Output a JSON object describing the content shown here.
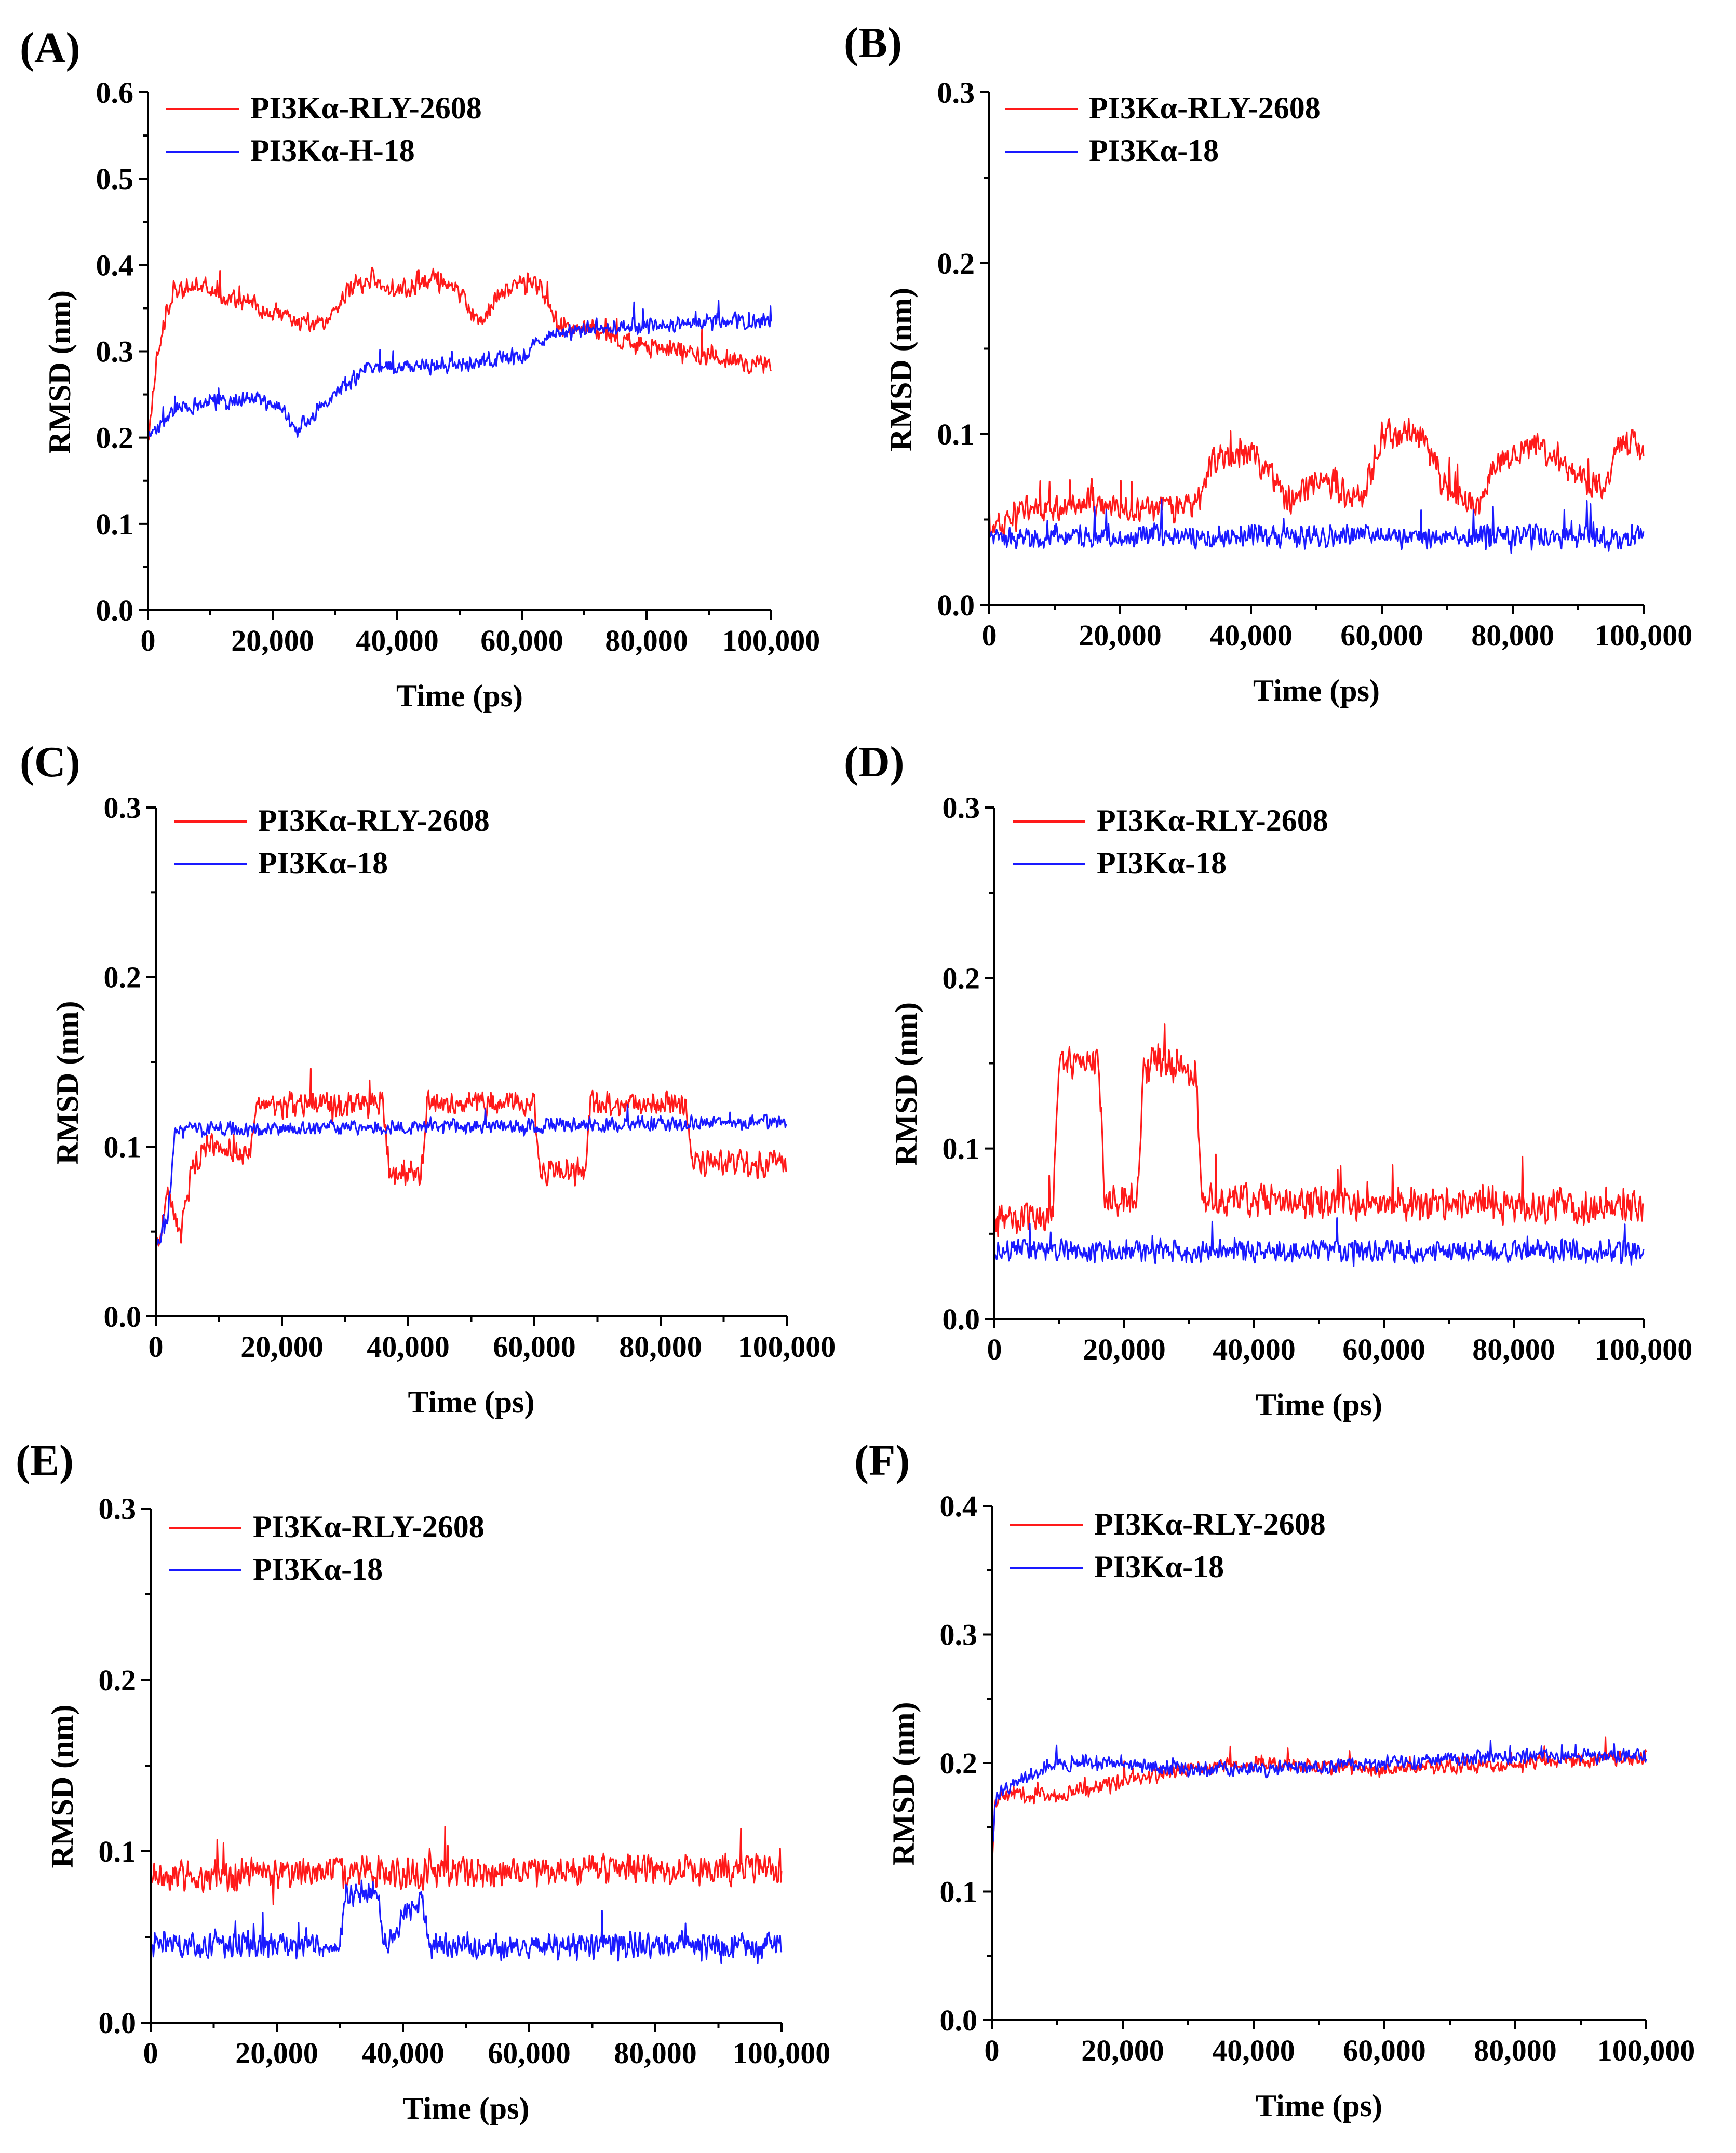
{
  "colors": {
    "red": "#ff1a1a",
    "blue": "#1a1aff"
  },
  "chart_data": [
    {
      "panel": "(A)",
      "type": "line",
      "xlabel": "Time (ps)",
      "ylabel": "RMSD (nm)",
      "xlim": [
        0,
        100000
      ],
      "ylim": [
        0,
        0.6
      ],
      "xticks": [
        0,
        20000,
        40000,
        60000,
        80000,
        100000
      ],
      "xtick_labels": [
        "0",
        "20,000",
        "40,000",
        "60,000",
        "80,000",
        "100,000"
      ],
      "yticks": [
        0,
        0.1,
        0.2,
        0.3,
        0.4,
        0.5,
        0.6
      ],
      "ytick_labels": [
        "0.0",
        "0.1",
        "0.2",
        "0.3",
        "0.4",
        "0.5",
        "0.6"
      ],
      "legend_position": "top-left",
      "series": [
        {
          "name": "PI3Kα-RLY-2608",
          "color": "red",
          "noise": 0.014,
          "x": [
            0,
            1500,
            4000,
            8000,
            15000,
            22000,
            28000,
            32000,
            36000,
            40000,
            46000,
            50000,
            53000,
            57000,
            62000,
            66000,
            72000,
            80000,
            90000,
            100000
          ],
          "y": [
            0.2,
            0.3,
            0.37,
            0.375,
            0.36,
            0.34,
            0.33,
            0.37,
            0.385,
            0.37,
            0.385,
            0.365,
            0.335,
            0.37,
            0.385,
            0.33,
            0.325,
            0.305,
            0.295,
            0.28
          ]
        },
        {
          "name": "PI3Kα-H-18",
          "color": "blue",
          "noise": 0.011,
          "x": [
            0,
            1500,
            5000,
            10000,
            18000,
            21000,
            24000,
            30000,
            35000,
            40000,
            50000,
            60000,
            65000,
            70000,
            80000,
            90000,
            100000
          ],
          "y": [
            0.2,
            0.21,
            0.235,
            0.24,
            0.245,
            0.235,
            0.21,
            0.25,
            0.28,
            0.28,
            0.285,
            0.295,
            0.32,
            0.325,
            0.33,
            0.335,
            0.335
          ]
        }
      ]
    },
    {
      "panel": "(B)",
      "type": "line",
      "xlabel": "Time (ps)",
      "ylabel": "RMSD (nm)",
      "xlim": [
        0,
        100000
      ],
      "ylim": [
        0,
        0.3
      ],
      "xticks": [
        0,
        20000,
        40000,
        60000,
        80000,
        100000
      ],
      "xtick_labels": [
        "0",
        "20,000",
        "40,000",
        "60,000",
        "80,000",
        "100,000"
      ],
      "yticks": [
        0,
        0.1,
        0.2,
        0.3
      ],
      "ytick_labels": [
        "0.0",
        "0.1",
        "0.2",
        "0.3"
      ],
      "legend_position": "top-left",
      "series": [
        {
          "name": "PI3Kα-RLY-2608",
          "color": "red",
          "noise": 0.01,
          "x": [
            0,
            5000,
            15000,
            25000,
            32000,
            34000,
            40000,
            46000,
            50000,
            57000,
            60000,
            66000,
            70000,
            75000,
            77000,
            82000,
            86000,
            90000,
            94000,
            97000,
            100000
          ],
          "y": [
            0.04,
            0.055,
            0.06,
            0.055,
            0.06,
            0.085,
            0.09,
            0.06,
            0.075,
            0.06,
            0.1,
            0.1,
            0.065,
            0.06,
            0.08,
            0.095,
            0.09,
            0.075,
            0.07,
            0.1,
            0.09
          ]
        },
        {
          "name": "PI3Kα-18",
          "color": "blue",
          "noise": 0.008,
          "x": [
            0,
            50000,
            100000
          ],
          "y": [
            0.04,
            0.04,
            0.04
          ]
        }
      ]
    },
    {
      "panel": "(C)",
      "type": "line",
      "xlabel": "Time (ps)",
      "ylabel": "RMSD (nm)",
      "xlim": [
        0,
        100000
      ],
      "ylim": [
        0,
        0.3
      ],
      "xticks": [
        0,
        20000,
        40000,
        60000,
        80000,
        100000
      ],
      "xtick_labels": [
        "0",
        "20,000",
        "40,000",
        "60,000",
        "80,000",
        "100,000"
      ],
      "yticks": [
        0,
        0.1,
        0.2,
        0.3
      ],
      "ytick_labels": [
        "0.0",
        "0.1",
        "0.2",
        "0.3"
      ],
      "legend_position": "top-left",
      "series": [
        {
          "name": "PI3Kα-RLY-2608",
          "color": "red",
          "noise": 0.009,
          "x": [
            0,
            2000,
            4000,
            6000,
            8000,
            15000,
            16000,
            36000,
            37000,
            42000,
            43000,
            60000,
            61000,
            68000,
            69000,
            84000,
            85000,
            100000
          ],
          "y": [
            0.04,
            0.07,
            0.05,
            0.09,
            0.1,
            0.095,
            0.125,
            0.125,
            0.085,
            0.085,
            0.125,
            0.125,
            0.085,
            0.085,
            0.125,
            0.125,
            0.09,
            0.09
          ]
        },
        {
          "name": "PI3Kα-18",
          "color": "blue",
          "noise": 0.005,
          "x": [
            0,
            2000,
            3000,
            50000,
            100000
          ],
          "y": [
            0.04,
            0.06,
            0.11,
            0.112,
            0.115
          ]
        }
      ]
    },
    {
      "panel": "(D)",
      "type": "line",
      "xlabel": "Time (ps)",
      "ylabel": "RMSD (nm)",
      "xlim": [
        0,
        100000
      ],
      "ylim": [
        0,
        0.3
      ],
      "xticks": [
        0,
        20000,
        40000,
        60000,
        80000,
        100000
      ],
      "xtick_labels": [
        "0",
        "20,000",
        "40,000",
        "60,000",
        "80,000",
        "100,000"
      ],
      "yticks": [
        0,
        0.1,
        0.2,
        0.3
      ],
      "ytick_labels": [
        "0.0",
        "0.1",
        "0.2",
        "0.3"
      ],
      "legend_position": "top-left",
      "series": [
        {
          "name": "PI3Kα-RLY-2608",
          "color": "red",
          "noise": 0.012,
          "x": [
            0,
            9000,
            10000,
            16000,
            17000,
            22000,
            23000,
            31000,
            32000,
            100000
          ],
          "y": [
            0.06,
            0.06,
            0.15,
            0.15,
            0.07,
            0.07,
            0.15,
            0.145,
            0.07,
            0.065
          ]
        },
        {
          "name": "PI3Kα-18",
          "color": "blue",
          "noise": 0.008,
          "x": [
            0,
            50000,
            100000
          ],
          "y": [
            0.04,
            0.04,
            0.04
          ]
        }
      ]
    },
    {
      "panel": "(E)",
      "type": "line",
      "xlabel": "Time (ps)",
      "ylabel": "RMSD (nm)",
      "xlim": [
        0,
        100000
      ],
      "ylim": [
        0,
        0.3
      ],
      "xticks": [
        0,
        20000,
        40000,
        60000,
        80000,
        100000
      ],
      "xtick_labels": [
        "0",
        "20,000",
        "40,000",
        "60,000",
        "80,000",
        "100,000"
      ],
      "yticks": [
        0,
        0.1,
        0.2,
        0.3
      ],
      "ytick_labels": [
        "0.0",
        "0.1",
        "0.2",
        "0.3"
      ],
      "legend_position": "top-left",
      "series": [
        {
          "name": "PI3Kα-RLY-2608",
          "color": "red",
          "noise": 0.011,
          "x": [
            0,
            20000,
            50000,
            80000,
            100000
          ],
          "y": [
            0.085,
            0.087,
            0.088,
            0.09,
            0.09
          ]
        },
        {
          "name": "PI3Kα-18",
          "color": "blue",
          "noise": 0.009,
          "x": [
            0,
            30000,
            31000,
            36000,
            37000,
            43000,
            44000,
            100000
          ],
          "y": [
            0.045,
            0.045,
            0.075,
            0.075,
            0.045,
            0.075,
            0.045,
            0.045
          ]
        }
      ]
    },
    {
      "panel": "(F)",
      "type": "line",
      "xlabel": "Time (ps)",
      "ylabel": "RMSD (nm)",
      "xlim": [
        0,
        100000
      ],
      "ylim": [
        0,
        0.4
      ],
      "xticks": [
        0,
        20000,
        40000,
        60000,
        80000,
        100000
      ],
      "xtick_labels": [
        "0",
        "20,000",
        "40,000",
        "60,000",
        "80,000",
        "100,000"
      ],
      "yticks": [
        0,
        0.1,
        0.2,
        0.3,
        0.4
      ],
      "ytick_labels": [
        "0.0",
        "0.1",
        "0.2",
        "0.3",
        "0.4"
      ],
      "legend_position": "top-left",
      "series": [
        {
          "name": "PI3Kα-RLY-2608",
          "color": "red",
          "noise": 0.007,
          "x": [
            0,
            500,
            2000,
            10000,
            20000,
            30000,
            40000,
            60000,
            80000,
            100000
          ],
          "y": [
            0.12,
            0.17,
            0.175,
            0.175,
            0.185,
            0.195,
            0.2,
            0.195,
            0.2,
            0.205
          ]
        },
        {
          "name": "PI3Kα-18",
          "color": "blue",
          "noise": 0.007,
          "x": [
            0,
            500,
            2000,
            10000,
            20000,
            30000,
            40000,
            60000,
            80000,
            100000
          ],
          "y": [
            0.12,
            0.17,
            0.18,
            0.2,
            0.2,
            0.195,
            0.195,
            0.2,
            0.205,
            0.205
          ]
        }
      ]
    }
  ]
}
